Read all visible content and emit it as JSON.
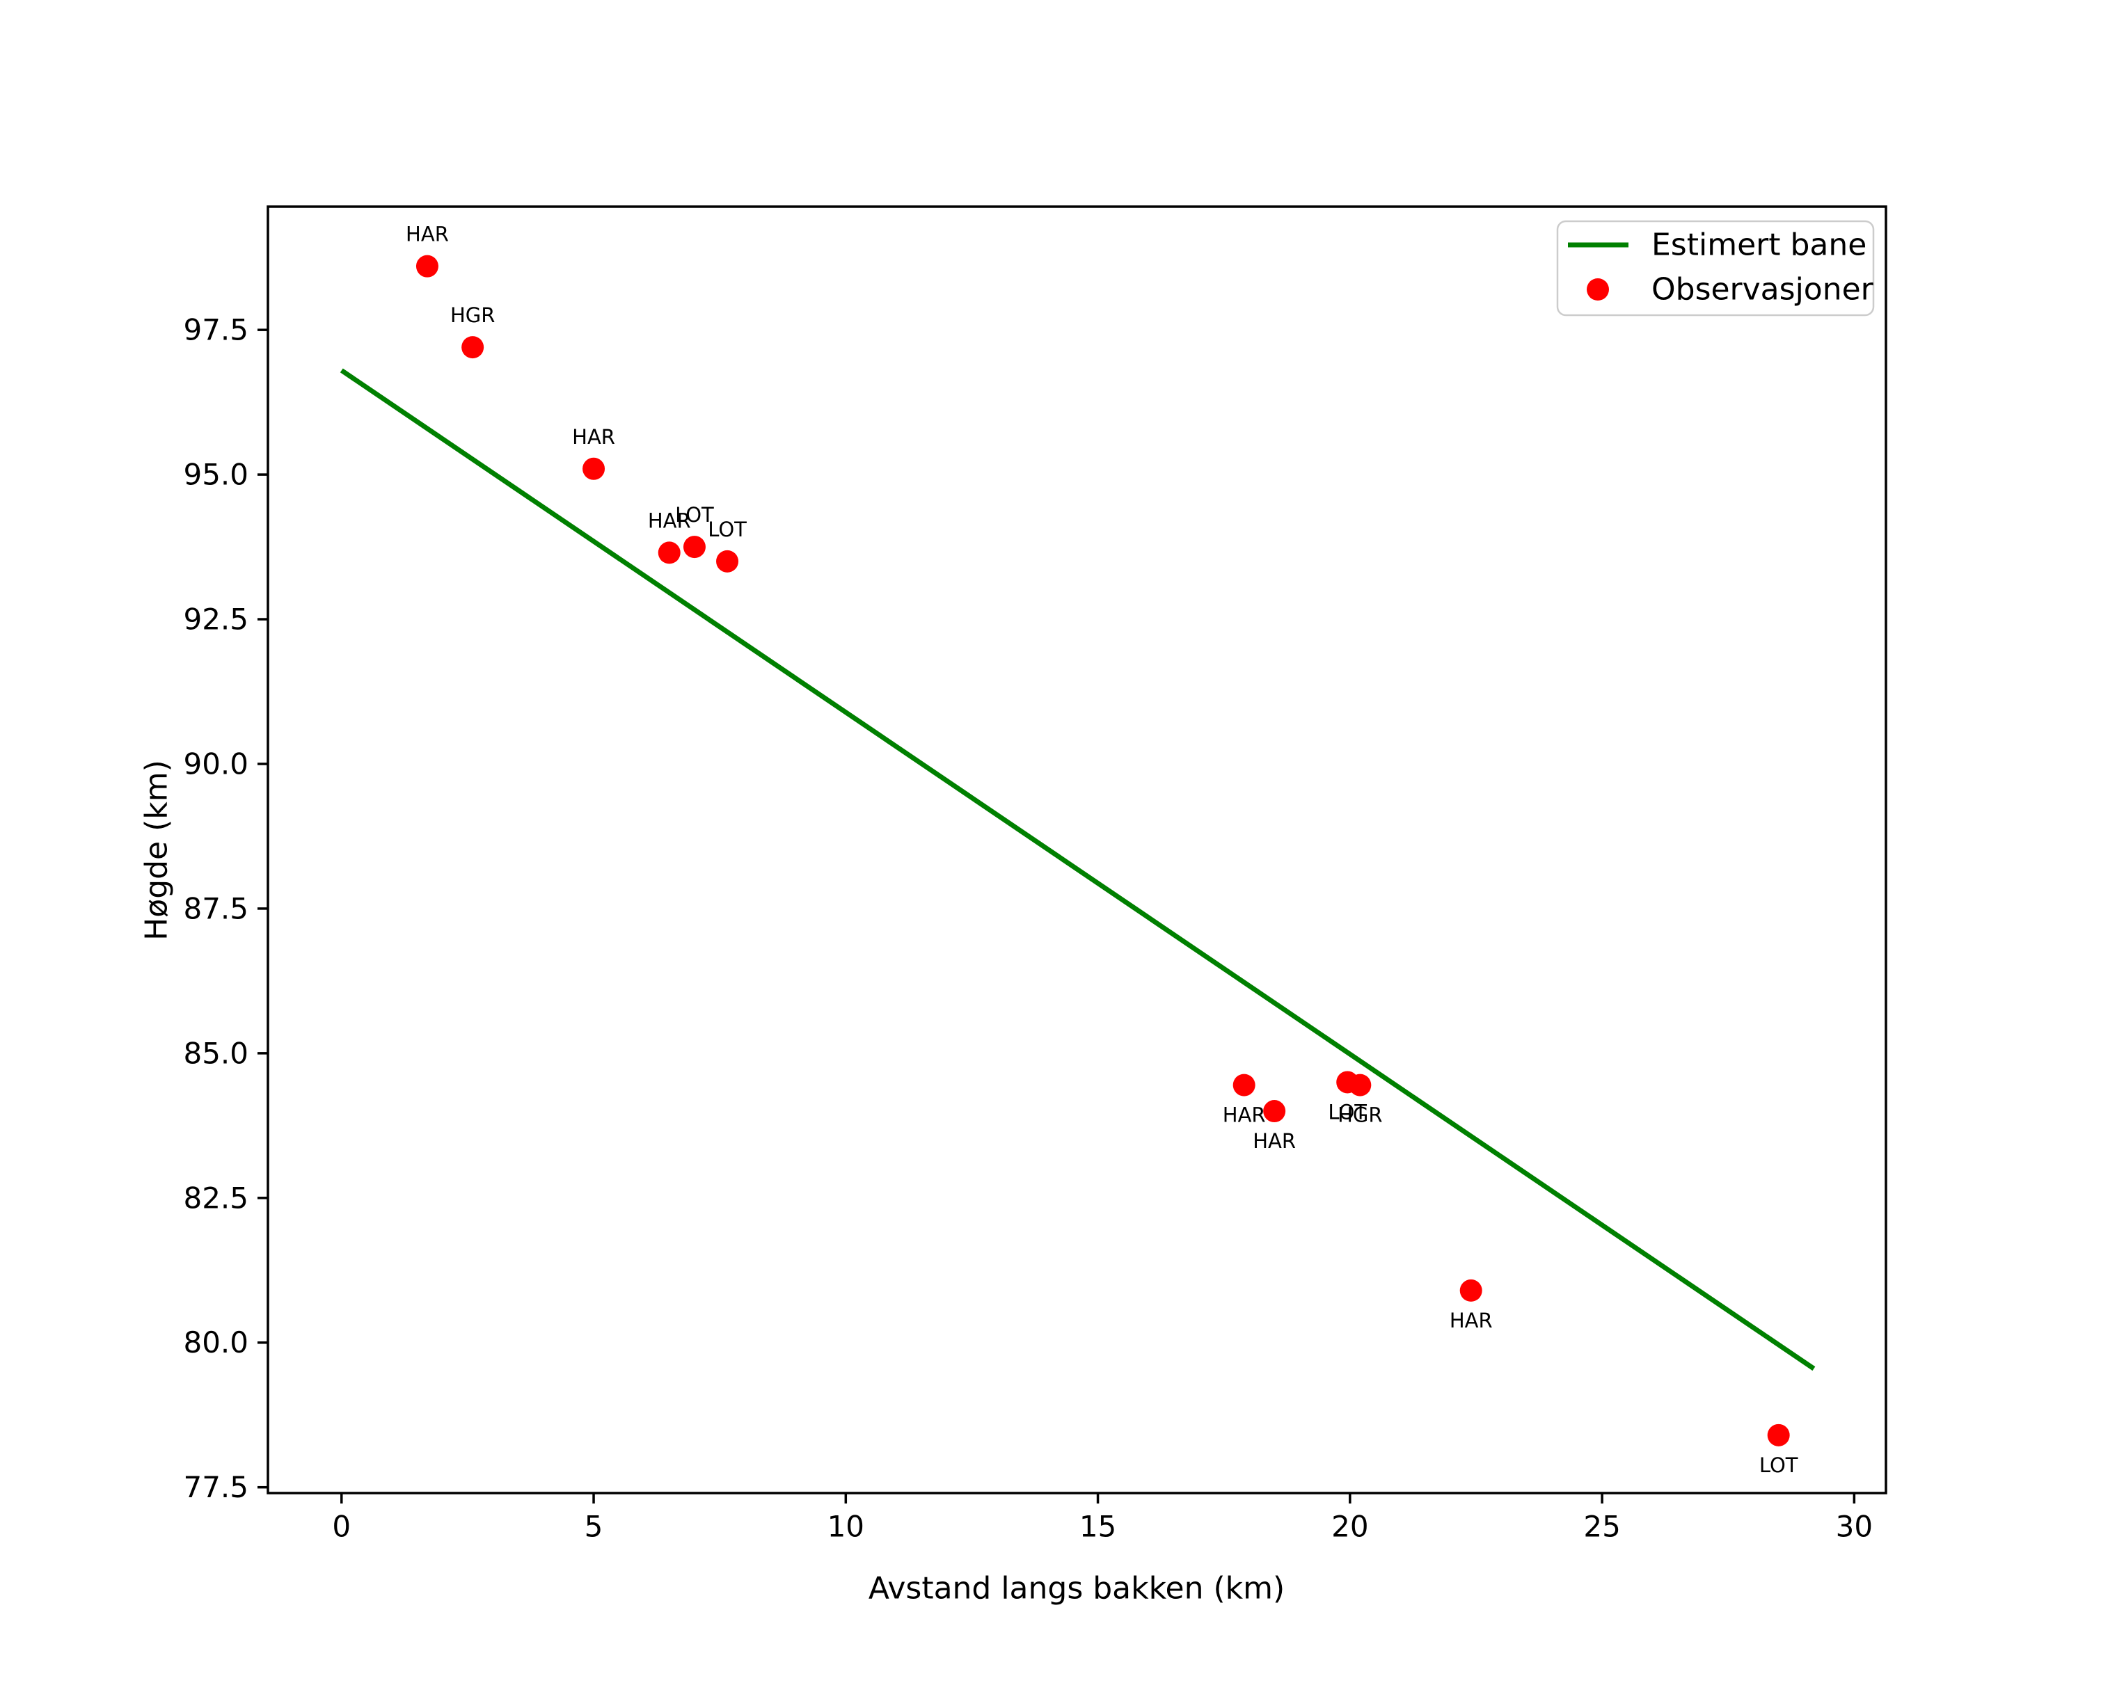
{
  "chart_data": {
    "type": "scatter",
    "title": "",
    "xlabel": "Avstand langs bakken (km)",
    "ylabel": "Høgde (km)",
    "xlim": [
      -1.46,
      30.63
    ],
    "ylim": [
      77.4,
      99.63
    ],
    "grid": false,
    "x_tick_values": [
      0,
      5,
      10,
      15,
      20,
      25,
      30
    ],
    "x_tick_labels": [
      "0",
      "5",
      "10",
      "15",
      "20",
      "25",
      "30"
    ],
    "y_tick_values": [
      77.5,
      80.0,
      82.5,
      85.0,
      87.5,
      90.0,
      92.5,
      95.0,
      97.5
    ],
    "y_tick_labels": [
      "77.5",
      "80.0",
      "82.5",
      "85.0",
      "87.5",
      "90.0",
      "92.5",
      "95.0",
      "97.5"
    ],
    "legend": {
      "position": "upper right",
      "entries": [
        {
          "label": "Estimert bane",
          "type": "line",
          "color": "#008000"
        },
        {
          "label": "Observasjoner",
          "type": "marker",
          "color": "#ff0000"
        }
      ]
    },
    "series": [
      {
        "name": "Estimert bane",
        "type": "line",
        "color": "#008000",
        "x": [
          0,
          29.2
        ],
        "y": [
          96.8,
          79.55
        ]
      },
      {
        "name": "Observasjoner",
        "type": "scatter",
        "color": "#ff0000",
        "points": [
          {
            "x": 1.7,
            "y": 98.6,
            "station": "HAR",
            "label_pos": "above"
          },
          {
            "x": 2.6,
            "y": 97.2,
            "station": "HGR",
            "label_pos": "above"
          },
          {
            "x": 5.0,
            "y": 95.1,
            "station": "HAR",
            "label_pos": "above"
          },
          {
            "x": 6.5,
            "y": 93.65,
            "station": "HAR",
            "label_pos": "above"
          },
          {
            "x": 7.0,
            "y": 93.75,
            "station": "LOT",
            "label_pos": "above"
          },
          {
            "x": 7.65,
            "y": 93.5,
            "station": "LOT",
            "label_pos": "above"
          },
          {
            "x": 17.9,
            "y": 84.45,
            "station": "HAR",
            "label_pos": "below"
          },
          {
            "x": 18.5,
            "y": 84.0,
            "station": "HAR",
            "label_pos": "below"
          },
          {
            "x": 19.95,
            "y": 84.5,
            "station": "LOT",
            "label_pos": "below"
          },
          {
            "x": 20.2,
            "y": 84.45,
            "station": "HGR",
            "label_pos": "below"
          },
          {
            "x": 22.4,
            "y": 80.9,
            "station": "HAR",
            "label_pos": "below"
          },
          {
            "x": 28.5,
            "y": 78.4,
            "station": "LOT",
            "label_pos": "below"
          }
        ]
      }
    ],
    "colors": {
      "line": "#008000",
      "marker": "#ff0000",
      "text": "#000000",
      "legend_border": "#cccccc",
      "background": "#ffffff"
    }
  }
}
